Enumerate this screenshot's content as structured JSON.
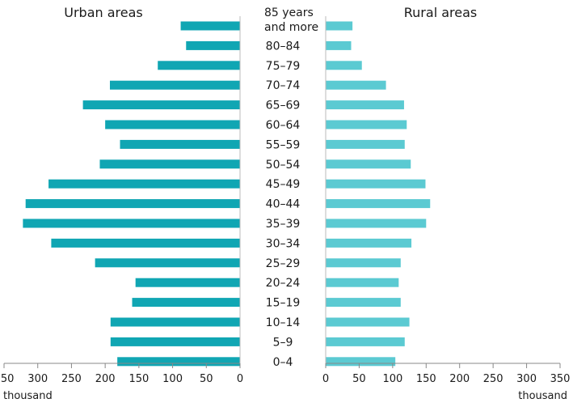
{
  "chart_data": {
    "type": "bar",
    "subtype": "population-pyramid",
    "unit_label": "thousand",
    "categories": [
      "85 years|and more",
      "80–84",
      "75–79",
      "70–74",
      "65–69",
      "60–64",
      "55–59",
      "50–54",
      "45–49",
      "40–44",
      "35–39",
      "30–34",
      "25–29",
      "20–24",
      "15–19",
      "10–14",
      "5–9",
      "0–4"
    ],
    "series": [
      {
        "name": "Urban areas",
        "side": "left",
        "color": "#10a6b3",
        "values": [
          88,
          80,
          122,
          193,
          233,
          200,
          178,
          208,
          284,
          318,
          322,
          280,
          215,
          155,
          160,
          192,
          192,
          182
        ]
      },
      {
        "name": "Rural areas",
        "side": "right",
        "color": "#5bcad2",
        "values": [
          40,
          38,
          54,
          90,
          117,
          121,
          118,
          127,
          149,
          156,
          150,
          128,
          112,
          109,
          112,
          125,
          118,
          104
        ]
      }
    ],
    "xlim": [
      0,
      350
    ],
    "x_ticks": [
      0,
      50,
      100,
      150,
      200,
      250,
      300,
      350
    ],
    "legend": "titles above each half"
  }
}
